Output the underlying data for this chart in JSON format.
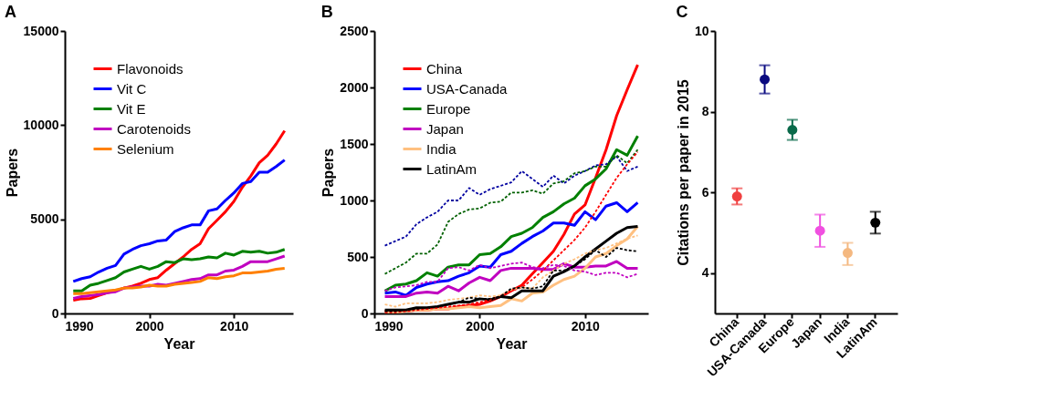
{
  "chart_data": [
    {
      "type": "line",
      "title": "A",
      "xlabel": "Year",
      "ylabel": "Papers",
      "xlim": [
        1990,
        2017
      ],
      "xticks": [
        1990,
        2000,
        2010
      ],
      "ylim": [
        0,
        15000
      ],
      "yticks": [
        0,
        {
          "value": 5000,
          "label": "5000"
        },
        {
          "value": 10000,
          "label": "10000"
        },
        {
          "value": 15000,
          "label": "15000"
        }
      ],
      "grid": false,
      "legend": "top left",
      "line_style": "solid",
      "x": [
        1991,
        1992,
        1993,
        1994,
        1995,
        1996,
        1997,
        1998,
        1999,
        2000,
        2001,
        2002,
        2003,
        2004,
        2005,
        2006,
        2007,
        2008,
        2009,
        2010,
        2011,
        2012,
        2013,
        2014,
        2015,
        2016
      ],
      "series": [
        {
          "name": "Flavonoids",
          "color": "#ff0000",
          "values": [
            700,
            780,
            800,
            950,
            1100,
            1200,
            1350,
            1450,
            1600,
            1800,
            1900,
            2300,
            2650,
            3000,
            3400,
            3700,
            4500,
            4950,
            5400,
            5950,
            6700,
            7300,
            8000,
            8400,
            9000,
            9700
          ]
        },
        {
          "name": "Vit C",
          "color": "#0000ff",
          "values": [
            1700,
            1850,
            1950,
            2200,
            2400,
            2550,
            3150,
            3400,
            3600,
            3700,
            3850,
            3900,
            4350,
            4550,
            4700,
            4700,
            5450,
            5550,
            6000,
            6400,
            6900,
            7000,
            7500,
            7500,
            7800,
            8150
          ]
        },
        {
          "name": "Vit E",
          "color": "#008000",
          "values": [
            1200,
            1200,
            1500,
            1600,
            1750,
            1900,
            2200,
            2350,
            2500,
            2350,
            2500,
            2750,
            2700,
            2900,
            2850,
            2900,
            3000,
            2950,
            3200,
            3100,
            3300,
            3250,
            3300,
            3200,
            3250,
            3400
          ]
        },
        {
          "name": "Carotenoids",
          "color": "#c000c0",
          "values": [
            800,
            900,
            950,
            1000,
            1100,
            1150,
            1350,
            1400,
            1450,
            1450,
            1550,
            1500,
            1600,
            1700,
            1800,
            1850,
            2050,
            2050,
            2250,
            2300,
            2500,
            2750,
            2750,
            2750,
            2900,
            3050
          ]
        },
        {
          "name": "Selenium",
          "color": "#ff8000",
          "values": [
            1050,
            1050,
            1100,
            1150,
            1200,
            1250,
            1350,
            1350,
            1400,
            1500,
            1450,
            1450,
            1550,
            1600,
            1650,
            1700,
            1900,
            1850,
            1950,
            2000,
            2150,
            2150,
            2200,
            2250,
            2350,
            2400
          ]
        }
      ]
    },
    {
      "type": "line",
      "title": "B",
      "xlabel": "Year",
      "ylabel": "Papers",
      "xlim": [
        1990,
        2016
      ],
      "xticks": [
        1990,
        2000,
        2010
      ],
      "ylim": [
        0,
        2500
      ],
      "yticks": [
        0,
        500,
        1000,
        1500,
        2000,
        2500
      ],
      "grid": false,
      "legend": "top left",
      "x": [
        1991,
        1992,
        1993,
        1994,
        1995,
        1996,
        1997,
        1998,
        1999,
        2000,
        2001,
        2002,
        2003,
        2004,
        2005,
        2006,
        2007,
        2008,
        2009,
        2010,
        2011,
        2012,
        2013,
        2014,
        2015
      ],
      "series": [
        {
          "color": "#0000a0",
          "line_style": "dashed",
          "values": [
            600,
            640,
            680,
            790,
            850,
            900,
            1000,
            1000,
            1110,
            1050,
            1100,
            1130,
            1160,
            1260,
            1190,
            1120,
            1220,
            1150,
            1220,
            1260,
            1310,
            1320,
            1390,
            1260,
            1300
          ]
        },
        {
          "color": "#006000",
          "line_style": "dashed",
          "values": [
            350,
            400,
            450,
            530,
            530,
            610,
            810,
            880,
            920,
            930,
            980,
            990,
            1070,
            1070,
            1090,
            1060,
            1150,
            1170,
            1240,
            1260,
            1300,
            1300,
            1400,
            1330,
            1450
          ]
        },
        {
          "color": "#ff0000",
          "line_style": "dashed",
          "values": [
            10,
            10,
            20,
            30,
            40,
            50,
            60,
            70,
            80,
            100,
            120,
            160,
            200,
            230,
            300,
            380,
            470,
            560,
            650,
            760,
            900,
            1050,
            1200,
            1320,
            1430
          ]
        },
        {
          "color": "#c000c0",
          "line_style": "dashed",
          "values": [
            200,
            230,
            240,
            250,
            280,
            280,
            400,
            410,
            380,
            430,
            400,
            420,
            440,
            450,
            410,
            400,
            430,
            420,
            380,
            370,
            340,
            360,
            360,
            320,
            350
          ]
        },
        {
          "color": "#ffc080",
          "line_style": "dashed",
          "values": [
            80,
            60,
            90,
            90,
            90,
            100,
            120,
            130,
            140,
            160,
            150,
            160,
            210,
            230,
            220,
            320,
            380,
            440,
            480,
            530,
            560,
            580,
            620,
            660,
            690
          ]
        },
        {
          "color": "#000000",
          "line_style": "dashed",
          "values": [
            20,
            20,
            30,
            40,
            50,
            60,
            80,
            100,
            140,
            130,
            130,
            150,
            220,
            230,
            220,
            240,
            380,
            380,
            420,
            480,
            560,
            500,
            580,
            560,
            550
          ]
        },
        {
          "name": "China",
          "color": "#ff0000",
          "line_style": "solid",
          "values": [
            20,
            20,
            20,
            30,
            30,
            40,
            40,
            60,
            70,
            80,
            110,
            150,
            200,
            250,
            350,
            450,
            550,
            700,
            880,
            960,
            1200,
            1450,
            1750,
            1980,
            2200
          ]
        },
        {
          "name": "USA-Canada",
          "color": "#0000ff",
          "line_style": "solid",
          "values": [
            180,
            190,
            160,
            230,
            260,
            280,
            290,
            330,
            360,
            420,
            410,
            520,
            550,
            620,
            680,
            730,
            800,
            800,
            780,
            900,
            830,
            950,
            980,
            900,
            980
          ]
        },
        {
          "name": "Europe",
          "color": "#008000",
          "line_style": "solid",
          "values": [
            200,
            250,
            260,
            290,
            360,
            330,
            410,
            430,
            430,
            520,
            530,
            590,
            680,
            710,
            760,
            850,
            900,
            970,
            1020,
            1130,
            1190,
            1280,
            1450,
            1400,
            1570
          ]
        },
        {
          "name": "Japan",
          "color": "#c000c0",
          "line_style": "solid",
          "values": [
            150,
            150,
            150,
            180,
            190,
            180,
            240,
            200,
            270,
            320,
            290,
            380,
            400,
            400,
            400,
            390,
            390,
            440,
            410,
            410,
            420,
            420,
            460,
            400,
            400
          ]
        },
        {
          "name": "India",
          "color": "#ffc080",
          "line_style": "solid",
          "values": [
            10,
            10,
            20,
            30,
            30,
            40,
            40,
            50,
            60,
            50,
            60,
            70,
            130,
            110,
            180,
            190,
            250,
            300,
            330,
            400,
            500,
            530,
            600,
            660,
            770
          ]
        },
        {
          "name": "LatinAm",
          "color": "#000000",
          "line_style": "solid",
          "values": [
            30,
            30,
            30,
            50,
            50,
            60,
            80,
            100,
            100,
            130,
            120,
            150,
            140,
            200,
            200,
            200,
            330,
            370,
            420,
            500,
            570,
            640,
            710,
            760,
            770
          ]
        }
      ]
    },
    {
      "type": "scatter",
      "title": "C",
      "ylabel": "Citations per paper in 2015",
      "ylim": [
        3,
        10
      ],
      "yticks": [
        4,
        6,
        8,
        10
      ],
      "grid": false,
      "marker": "circle",
      "categories": [
        "China",
        "USA-Canada",
        "Europe",
        "Japan",
        "India",
        "LatinAm"
      ],
      "values": [
        5.9,
        8.8,
        7.55,
        5.05,
        4.5,
        5.25
      ],
      "colors": [
        "#f04040",
        "#0a0a80",
        "#0a6a4a",
        "#f050e0",
        "#f4b880",
        "#000000"
      ],
      "errors": [
        [
          5.7,
          6.1
        ],
        [
          8.45,
          9.15
        ],
        [
          7.3,
          7.8
        ],
        [
          4.65,
          5.45
        ],
        [
          4.2,
          4.75
        ],
        [
          4.98,
          5.52
        ]
      ]
    }
  ]
}
